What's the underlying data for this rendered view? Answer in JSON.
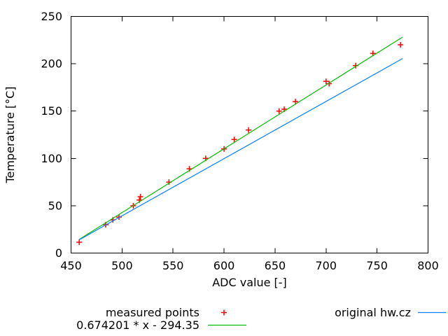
{
  "chart_data": {
    "type": "scatter",
    "title": "",
    "xlabel": "ADC value [-]",
    "ylabel": "Temperature [°C]",
    "grid": false,
    "legend_position": "below-plot",
    "x_axis": {
      "min": 450,
      "max": 800,
      "tick_step": 50,
      "ticks": [
        450,
        500,
        550,
        600,
        650,
        700,
        750,
        800
      ]
    },
    "y_axis": {
      "min": 0,
      "max": 250,
      "tick_step": 50,
      "ticks": [
        0,
        50,
        100,
        150,
        200,
        250
      ]
    },
    "axis_color": "#000000",
    "background_color": "#ffffff",
    "series": [
      {
        "name": "measured points",
        "style": "points",
        "marker": "plus",
        "color": "#ff0000",
        "points": [
          [
            458,
            11.5
          ],
          [
            484,
            30
          ],
          [
            491,
            35
          ],
          [
            497,
            38
          ],
          [
            511,
            50
          ],
          [
            517,
            56
          ],
          [
            518,
            59.5
          ],
          [
            546,
            75
          ],
          [
            566,
            89
          ],
          [
            582,
            100
          ],
          [
            600,
            110
          ],
          [
            610,
            120
          ],
          [
            624,
            130
          ],
          [
            654,
            150
          ],
          [
            659,
            152
          ],
          [
            670,
            160
          ],
          [
            700,
            181.5
          ],
          [
            703,
            179
          ],
          [
            729,
            198
          ],
          [
            746,
            211
          ],
          [
            773,
            220
          ]
        ]
      },
      {
        "name": "0.674201 * x - 294.35",
        "style": "line",
        "color": "#00c000",
        "formula": {
          "slope": 0.674201,
          "intercept": -294.35
        },
        "x_range": [
          458,
          775
        ]
      },
      {
        "name": "original hw.cz",
        "style": "line",
        "color": "#0080ff",
        "points": [
          [
            458,
            14
          ],
          [
            775,
            205.5
          ]
        ]
      }
    ]
  }
}
